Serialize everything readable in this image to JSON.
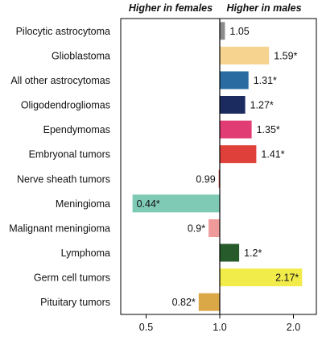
{
  "chart_data": {
    "type": "bar",
    "orientation": "horizontal",
    "scale": "log",
    "baseline": 1.0,
    "header_left": "Higher in females",
    "header_right": "Higher in males",
    "categories": [
      "Pilocytic astrocytoma",
      "Glioblastoma",
      "All other astrocytomas",
      "Oligodendrogliomas",
      "Ependymomas",
      "Embryonal tumors",
      "Nerve sheath tumors",
      "Meningioma",
      "Malignant meningioma",
      "Lymphoma",
      "Germ cell tumors",
      "Pituitary tumors"
    ],
    "values": [
      1.05,
      1.59,
      1.31,
      1.27,
      1.35,
      1.41,
      0.99,
      0.44,
      0.9,
      1.2,
      2.17,
      0.82
    ],
    "labels": [
      "1.05",
      "1.59*",
      "1.31*",
      "1.27*",
      "1.35*",
      "1.41*",
      "0.99",
      "0.44*",
      "0.9*",
      "1.2*",
      "2.17*",
      "0.82*"
    ],
    "colors": [
      "#8c8c8c",
      "#f6d48f",
      "#2a6ca2",
      "#1b2b5f",
      "#e23c74",
      "#e0403a",
      "#bb3a3a",
      "#7fcab5",
      "#ef9a9a",
      "#275b2b",
      "#f2ec4b",
      "#dba847"
    ],
    "xticks": [
      {
        "value": 0.5,
        "label": "0.5"
      },
      {
        "value": 1.0,
        "label": "1.0"
      },
      {
        "value": 2.0,
        "label": "2.0"
      }
    ],
    "xlim": [
      0.4,
      2.4
    ],
    "grid": false,
    "legend": "none"
  }
}
